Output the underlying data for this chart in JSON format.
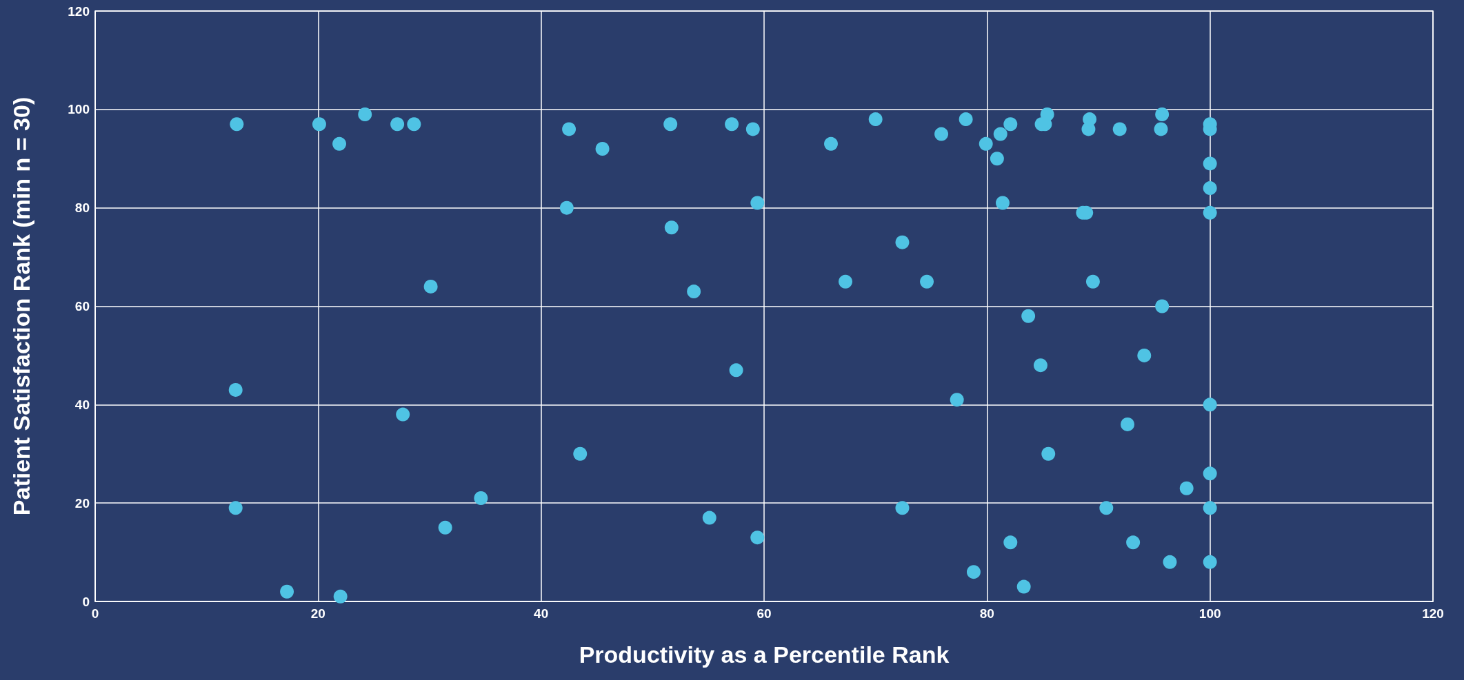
{
  "chart_data": {
    "type": "scatter",
    "xlabel": "Productivity as a Percentile Rank",
    "ylabel": "Patient Satisfaction Rank (min n = 30)",
    "x": [
      12.7,
      20.1,
      21.9,
      24.2,
      27.1,
      28.6,
      30.1,
      12.6,
      12.6,
      17.2,
      22.0,
      27.6,
      31.4,
      34.6,
      42.5,
      45.5,
      42.3,
      43.5,
      51.6,
      51.7,
      53.7,
      57.1,
      59.0,
      59.4,
      57.5,
      55.1,
      59.4,
      66.0,
      70.0,
      67.3,
      72.4,
      74.6,
      72.4,
      75.9,
      78.1,
      79.9,
      80.9,
      81.2,
      82.1,
      81.4,
      77.3,
      78.8,
      82.1,
      83.3,
      83.7,
      84.8,
      84.9,
      85.2,
      85.4,
      85.5,
      88.6,
      88.9,
      89.1,
      89.2,
      89.5,
      90.7,
      91.9,
      92.6,
      93.1,
      94.1,
      95.6,
      95.7,
      95.7,
      96.4,
      97.9,
      100,
      100,
      100,
      100,
      100,
      100,
      100,
      100,
      100
    ],
    "values": [
      97,
      97,
      93,
      99,
      97,
      97,
      64,
      43,
      19,
      2,
      1,
      38,
      15,
      21,
      96,
      92,
      80,
      30,
      97,
      76,
      63,
      97,
      96,
      81,
      47,
      17,
      13,
      93,
      98,
      65,
      73,
      65,
      19,
      95,
      98,
      93,
      90,
      95,
      97,
      81,
      41,
      6,
      12,
      3,
      58,
      48,
      97,
      97,
      99,
      30,
      79,
      79,
      96,
      98,
      65,
      19,
      96,
      36,
      12,
      50,
      96,
      99,
      60,
      8,
      23,
      97,
      96,
      89,
      84,
      79,
      40,
      26,
      19,
      8
    ],
    "color": "#4fc3e4",
    "marker": "circle",
    "grid": true,
    "xlim": [
      0,
      120
    ],
    "xticks": [
      0,
      20,
      40,
      60,
      80,
      100,
      120
    ],
    "ylim": [
      0,
      120
    ],
    "yticks": [
      0,
      20,
      40,
      60,
      80,
      100,
      120
    ]
  }
}
